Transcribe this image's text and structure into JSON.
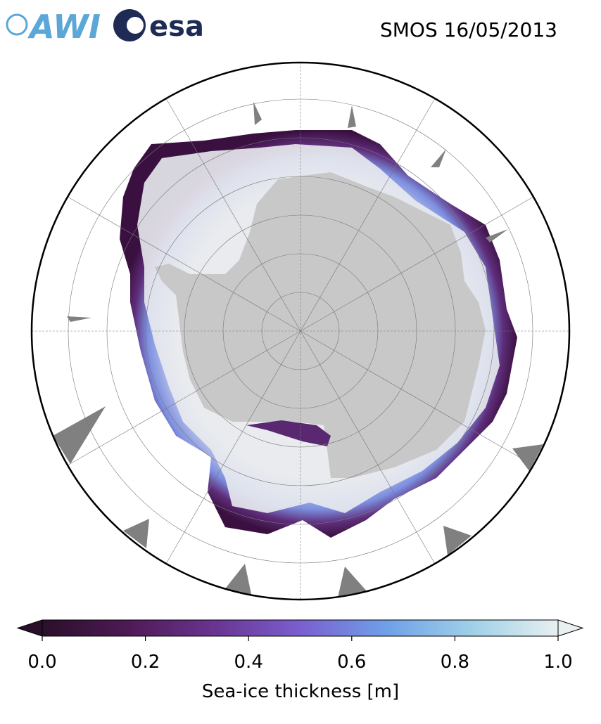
{
  "header": {
    "logos": [
      "AWI",
      "esa"
    ],
    "title": "SMOS 16/05/2013"
  },
  "colorbar": {
    "label": "Sea-ice thickness [m]",
    "lim": [
      0,
      1
    ],
    "ticks": [
      {
        "value": 0,
        "label": "0.0"
      },
      {
        "value": 0.2,
        "label": "0.2"
      },
      {
        "value": 0.4,
        "label": "0.4"
      },
      {
        "value": 0.6,
        "label": "0.6"
      },
      {
        "value": 0.8,
        "label": "0.8"
      },
      {
        "value": 1,
        "label": "1.0"
      }
    ],
    "colors": [
      "#2a0f2a",
      "#4e1a55",
      "#6a3490",
      "#7a5fd0",
      "#6fa0e8",
      "#9fd0e8",
      "#e8f0f0"
    ]
  }
}
